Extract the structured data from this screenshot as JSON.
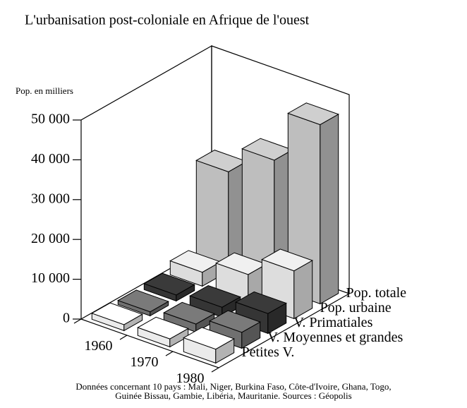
{
  "chart_data": {
    "type": "bar3d",
    "title": "L'urbanisation post-coloniale en Afrique de l'ouest",
    "y_label": "Pop. en milliers",
    "categories": [
      "1960",
      "1970",
      "1980"
    ],
    "series": [
      {
        "name": "Petites V.",
        "color": "#ffffff",
        "values": [
          1500,
          2000,
          3500
        ]
      },
      {
        "name": "V. Moyennes et grandes",
        "color": "#7a7a7a",
        "values": [
          1000,
          2000,
          4000
        ]
      },
      {
        "name": "V. Primatiales",
        "color": "#3a3a3a",
        "values": [
          1500,
          2500,
          5000
        ]
      },
      {
        "name": "Pop. urbaine",
        "color": "#f0f0f0",
        "values": [
          3500,
          7000,
          12000
        ]
      },
      {
        "name": "Pop. totale",
        "color": "#cfcfcf",
        "values": [
          25000,
          32000,
          45000
        ]
      }
    ],
    "ylim": [
      0,
      50000
    ],
    "yticks": [
      0,
      {
        "value": 10000,
        "label": "10 000"
      },
      {
        "value": 20000,
        "label": "20 000"
      },
      {
        "value": 30000,
        "label": "30 000"
      },
      {
        "value": 40000,
        "label": "40 000"
      },
      {
        "value": 50000,
        "label": "50 000"
      }
    ],
    "footnote": [
      "Données concernant 10 pays : Mali, Niger, Burkina Faso, Côte-d'Ivoire, Ghana, Togo,",
      "Guinée Bissau, Gambie, Libéria, Mauritanie. Sources : Géopolis"
    ]
  }
}
